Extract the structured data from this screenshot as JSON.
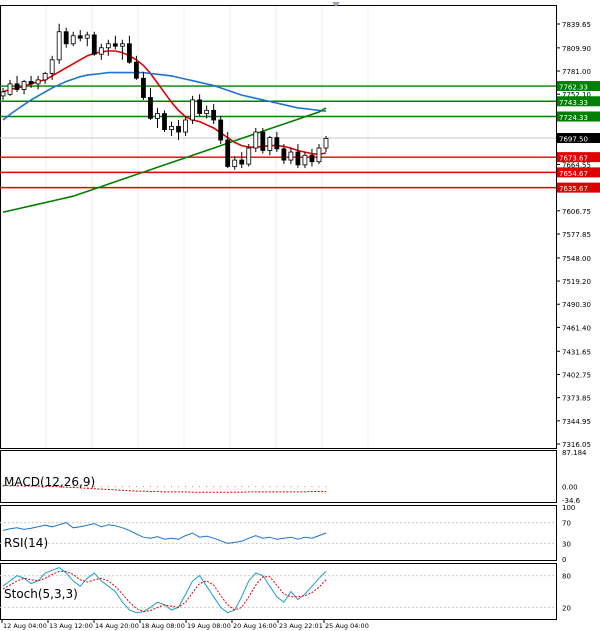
{
  "chart_data": {
    "type": "candlestick",
    "price_axis": {
      "ylim": [
        7316.05,
        7839.65
      ],
      "ticks": [
        "7839.65",
        "7809.90",
        "7781.00",
        "7752.10",
        "7664.55",
        "7606.75",
        "7577.85",
        "7548.00",
        "7519.20",
        "7490.30",
        "7461.40",
        "7431.65",
        "7402.75",
        "7373.85",
        "7344.95",
        "7316.05"
      ]
    },
    "x_ticks": [
      "12 Aug 04:00",
      "13 Aug 12:00",
      "14 Aug 20:00",
      "18 Aug 08:00",
      "19 Aug 08:00",
      "20 Aug 16:00",
      "23 Aug 22:01",
      "25 Aug 04:00"
    ],
    "levels": [
      {
        "label": "7762.33",
        "value": 7762.33,
        "color": "#008000"
      },
      {
        "label": "7743.33",
        "value": 7743.33,
        "color": "#008000"
      },
      {
        "label": "7724.33",
        "value": 7724.33,
        "color": "#008000"
      },
      {
        "label": "7673.67",
        "value": 7673.67,
        "color": "#e00000"
      },
      {
        "label": "7654.67",
        "value": 7654.67,
        "color": "#e00000"
      },
      {
        "label": "7635.67",
        "value": 7635.67,
        "color": "#e00000"
      }
    ],
    "current_price": {
      "label": "7697.50",
      "value": 7697.5
    },
    "candles": [
      [
        7750,
        7760,
        7745,
        7755
      ],
      [
        7752,
        7770,
        7750,
        7765
      ],
      [
        7765,
        7775,
        7755,
        7758
      ],
      [
        7758,
        7770,
        7752,
        7768
      ],
      [
        7768,
        7775,
        7760,
        7765
      ],
      [
        7765,
        7775,
        7758,
        7770
      ],
      [
        7770,
        7780,
        7765,
        7778
      ],
      [
        7778,
        7800,
        7770,
        7795
      ],
      [
        7795,
        7840,
        7790,
        7830
      ],
      [
        7830,
        7835,
        7810,
        7815
      ],
      [
        7815,
        7830,
        7812,
        7825
      ],
      [
        7825,
        7832,
        7818,
        7822
      ],
      [
        7822,
        7830,
        7812,
        7826
      ],
      [
        7826,
        7830,
        7800,
        7802
      ],
      [
        7802,
        7815,
        7795,
        7810
      ],
      [
        7810,
        7820,
        7800,
        7815
      ],
      [
        7815,
        7825,
        7808,
        7812
      ],
      [
        7812,
        7820,
        7795,
        7815
      ],
      [
        7815,
        7825,
        7790,
        7792
      ],
      [
        7792,
        7800,
        7770,
        7772
      ],
      [
        7772,
        7780,
        7745,
        7748
      ],
      [
        7748,
        7760,
        7720,
        7722
      ],
      [
        7722,
        7735,
        7710,
        7728
      ],
      [
        7728,
        7732,
        7705,
        7708
      ],
      [
        7708,
        7718,
        7700,
        7712
      ],
      [
        7712,
        7720,
        7695,
        7705
      ],
      [
        7705,
        7725,
        7700,
        7720
      ],
      [
        7720,
        7750,
        7715,
        7745
      ],
      [
        7745,
        7752,
        7725,
        7728
      ],
      [
        7728,
        7738,
        7722,
        7732
      ],
      [
        7732,
        7740,
        7715,
        7720
      ],
      [
        7720,
        7725,
        7690,
        7695
      ],
      [
        7695,
        7705,
        7660,
        7662
      ],
      [
        7662,
        7675,
        7658,
        7670
      ],
      [
        7670,
        7680,
        7660,
        7665
      ],
      [
        7665,
        7690,
        7662,
        7685
      ],
      [
        7685,
        7710,
        7680,
        7705
      ],
      [
        7705,
        7710,
        7678,
        7682
      ],
      [
        7682,
        7700,
        7676,
        7698
      ],
      [
        7698,
        7705,
        7680,
        7684
      ],
      [
        7684,
        7690,
        7665,
        7670
      ],
      [
        7670,
        7685,
        7665,
        7680
      ],
      [
        7680,
        7690,
        7660,
        7664
      ],
      [
        7664,
        7680,
        7660,
        7676
      ],
      [
        7676,
        7684,
        7662,
        7668
      ],
      [
        7668,
        7690,
        7665,
        7685
      ],
      [
        7685,
        7700,
        7680,
        7697
      ]
    ],
    "moving_averages": [
      {
        "color": "#e00000",
        "values": [
          7755,
          7758,
          7760,
          7762,
          7765,
          7768,
          7770,
          7775,
          7780,
          7785,
          7790,
          7795,
          7800,
          7803,
          7805,
          7806,
          7806,
          7804,
          7800,
          7795,
          7788,
          7778,
          7766,
          7754,
          7742,
          7732,
          7724,
          7720,
          7718,
          7714,
          7710,
          7704,
          7698,
          7692,
          7688,
          7686,
          7686,
          7687,
          7688,
          7688,
          7687,
          7685,
          7682,
          7680,
          7678,
          7677,
          7679
        ]
      },
      {
        "color": "#1e73d2",
        "values": [
          7720,
          7727,
          7733,
          7739,
          7745,
          7750,
          7755,
          7760,
          7764,
          7768,
          7771,
          7774,
          7776,
          7777,
          7778,
          7779,
          7779,
          7779,
          7779,
          7779,
          7779,
          7778,
          7777,
          7776,
          7775,
          7773,
          7771,
          7769,
          7767,
          7765,
          7763,
          7760,
          7757,
          7754,
          7751,
          7749,
          7747,
          7745,
          7743,
          7741,
          7739,
          7737,
          7735,
          7734,
          7733,
          7732,
          7731
        ]
      },
      {
        "color": "#008000",
        "values": [
          7605,
          7607,
          7609,
          7611,
          7613,
          7615,
          7617,
          7619,
          7621,
          7623,
          7625,
          7628,
          7631,
          7634,
          7637,
          7640,
          7643,
          7646,
          7649,
          7652,
          7655,
          7658,
          7661,
          7664,
          7667,
          7670,
          7673,
          7676,
          7679,
          7682,
          7685,
          7688,
          7691,
          7694,
          7697,
          7700,
          7703,
          7706,
          7709,
          7712,
          7715,
          7718,
          7721,
          7724,
          7727,
          7730,
          7735
        ]
      }
    ],
    "indicators": [
      {
        "name": "MACD(12,26,9)",
        "ticks": [
          "87.184",
          "0.00",
          "-34.6"
        ],
        "ylim": [
          -34.6,
          87.184
        ],
        "signal": [
          2,
          2,
          2,
          1,
          1,
          1,
          0,
          0,
          -1,
          -2,
          -3,
          -4,
          -5,
          -6,
          -7,
          -8,
          -9,
          -10,
          -11,
          -12,
          -12,
          -13,
          -13,
          -14,
          -14,
          -14,
          -14,
          -15,
          -15,
          -15,
          -15,
          -15,
          -15,
          -15,
          -15,
          -14,
          -14,
          -14,
          -14,
          -14,
          -14,
          -14,
          -14,
          -14,
          -13,
          -13,
          -13
        ],
        "histogram": [
          -2,
          -2,
          -2,
          -2,
          -2,
          -2,
          -2,
          -2,
          -2,
          -2,
          -2,
          -2,
          -2,
          -2,
          -2,
          -2,
          -2,
          -2,
          -2,
          -2,
          -2,
          -2,
          -2,
          -2,
          -2,
          -2,
          -2,
          -2,
          -2,
          -2,
          -2,
          -2,
          -2,
          -2,
          -2,
          -2,
          -2,
          -2,
          -2,
          -2,
          -2,
          -2,
          -2,
          -2,
          -2,
          -2,
          -2
        ]
      },
      {
        "name": "RSI(14)",
        "ticks": [
          "100",
          "70",
          "30",
          "0"
        ],
        "ylim": [
          0,
          100
        ],
        "line": [
          55,
          58,
          60,
          57,
          59,
          62,
          65,
          62,
          66,
          70,
          60,
          62,
          65,
          68,
          62,
          66,
          64,
          60,
          55,
          48,
          42,
          40,
          43,
          38,
          40,
          38,
          45,
          50,
          42,
          44,
          40,
          35,
          30,
          32,
          34,
          40,
          45,
          40,
          42,
          38,
          40,
          42,
          38,
          42,
          40,
          45,
          50
        ]
      },
      {
        "name": "Stoch(5,3,3)",
        "ticks": [
          "80",
          "20"
        ],
        "ylim": [
          0,
          100
        ],
        "main": [
          60,
          70,
          80,
          75,
          65,
          70,
          85,
          90,
          95,
          85,
          70,
          60,
          75,
          85,
          70,
          60,
          50,
          30,
          15,
          10,
          12,
          20,
          30,
          25,
          15,
          20,
          45,
          70,
          80,
          60,
          40,
          20,
          10,
          15,
          40,
          70,
          85,
          80,
          60,
          40,
          30,
          50,
          35,
          45,
          60,
          75,
          88
        ],
        "signal": [
          55,
          62,
          70,
          75,
          72,
          70,
          75,
          82,
          88,
          88,
          82,
          72,
          68,
          72,
          75,
          70,
          60,
          45,
          30,
          18,
          12,
          14,
          20,
          25,
          22,
          20,
          30,
          48,
          65,
          70,
          62,
          42,
          25,
          15,
          20,
          40,
          62,
          78,
          78,
          62,
          45,
          40,
          40,
          42,
          48,
          58,
          72
        ]
      }
    ]
  }
}
